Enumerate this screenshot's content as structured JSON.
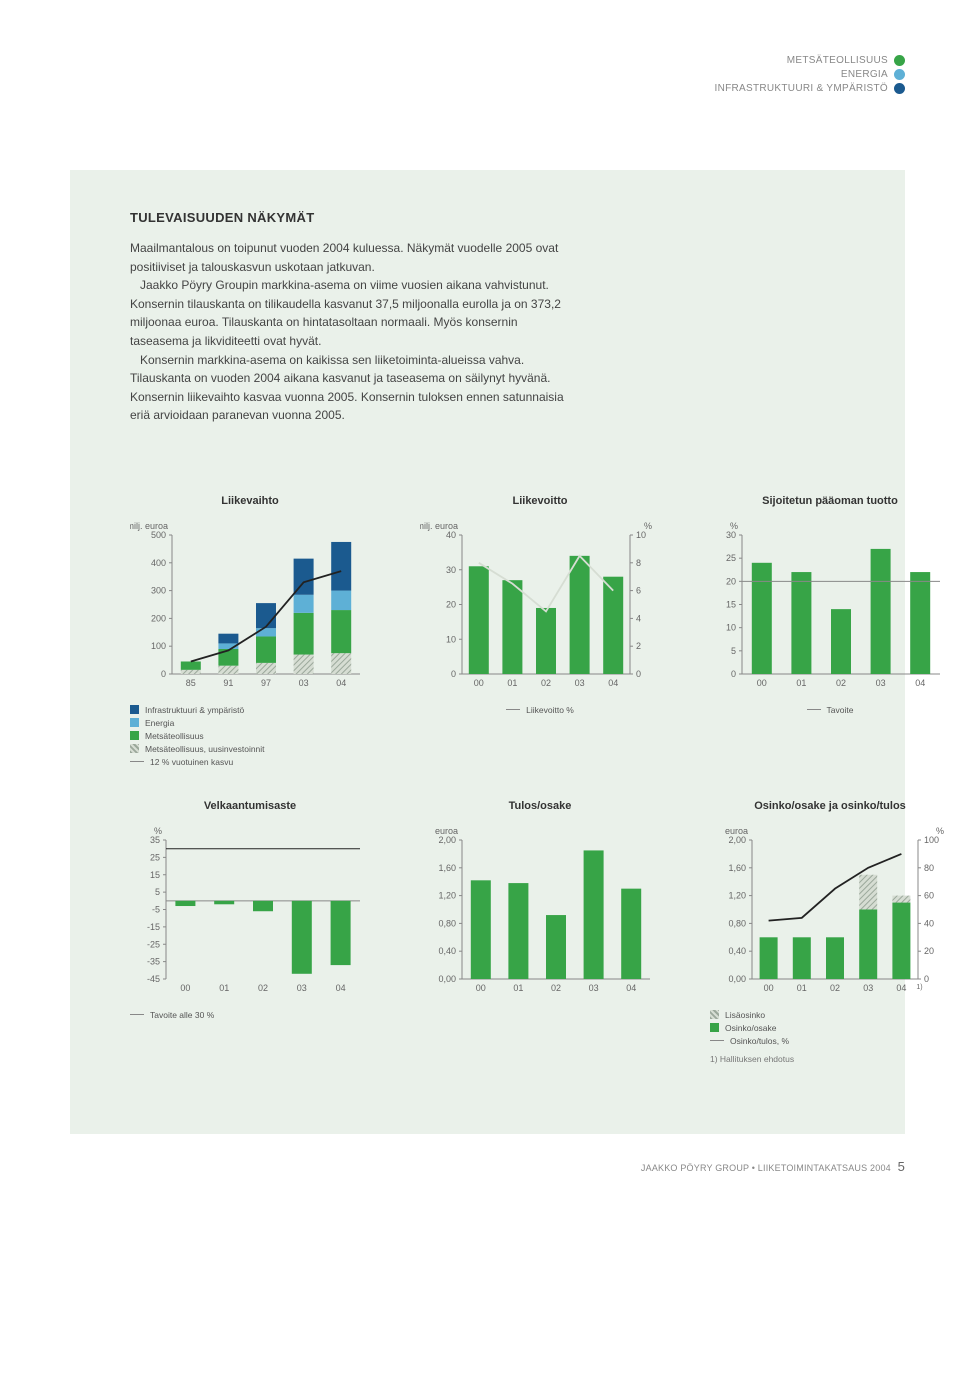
{
  "header": {
    "tags": [
      {
        "label": "METSÄTEOLLISUUS",
        "color": "#37a447"
      },
      {
        "label": "ENERGIA",
        "color": "#5eb0d6"
      },
      {
        "label": "INFRASTRUKTUURI & YMPÄRISTÖ",
        "color": "#1b5a8f"
      }
    ]
  },
  "body": {
    "title": "TULEVAISUUDEN NÄKYMÄT",
    "p1": "Maailmantalous on toipunut vuoden 2004 kuluessa. Näkymät vuodelle 2005 ovat positiiviset ja talouskasvun uskotaan jatkuvan.",
    "p2": "Jaakko Pöyry Groupin markkina-asema on viime vuosien aikana vahvistunut. Konsernin tilauskanta on tilikaudella kasvanut 37,5 miljoonalla eurolla ja on 373,2 miljoonaa euroa. Tilauskanta on hintatasoltaan normaali. Myös konsernin taseasema ja likviditeetti ovat hyvät.",
    "p3": "Konsernin markkina-asema on kaikissa sen liiketoiminta-alueissa vahva. Tilauskanta on vuoden 2004 aikana kasvanut ja taseasema on säilynyt hyvänä. Konsernin liikevaihto kasvaa vuonna 2005. Konsernin tuloksen ennen satunnaisia eriä arvioidaan paranevan vuonna 2005."
  },
  "colors": {
    "green": "#37a447",
    "dgreen": "#2e8a3c",
    "lblue": "#5eb0d6",
    "blue": "#2474b6",
    "dblue": "#1b5a8f",
    "grey": "#b9c4b9",
    "stripe": "#c9d3c9",
    "axis": "#888",
    "tick": "#666",
    "bg": "#eaf1ea",
    "black": "#222"
  },
  "chart1": {
    "title": "Liikevaihto",
    "ylab": "milj. euroa",
    "ymax": 500,
    "yticks": [
      0,
      100,
      200,
      300,
      400,
      500
    ],
    "cats": [
      "85",
      "91",
      "97",
      "03",
      "04"
    ],
    "series": {
      "stripe": [
        15,
        30,
        40,
        70,
        75
      ],
      "green": [
        30,
        60,
        95,
        150,
        155
      ],
      "lblue": [
        0,
        20,
        30,
        65,
        70
      ],
      "dblue": [
        0,
        35,
        90,
        130,
        175
      ]
    },
    "line": [
      45,
      85,
      170,
      330,
      370
    ],
    "legend": [
      {
        "sq": "#1b5a8f",
        "label": "Infrastruktuuri & ympäristö"
      },
      {
        "sq": "#5eb0d6",
        "label": "Energia"
      },
      {
        "sq": "#37a447",
        "label": "Metsäteollisuus"
      },
      {
        "sq": "stripe",
        "label": "Metsäteollisuus, uusinvestoinnit"
      },
      {
        "line": true,
        "label": "12 % vuotuinen kasvu"
      }
    ]
  },
  "chart2": {
    "title": "Liikevoitto",
    "ylab": "milj. euroa",
    "ylab2": "%",
    "ymax": 40,
    "yticks": [
      0,
      10,
      20,
      30,
      40
    ],
    "y2max": 10,
    "y2ticks": [
      0,
      2,
      4,
      6,
      8,
      10
    ],
    "cats": [
      "00",
      "01",
      "02",
      "03",
      "04"
    ],
    "bars": [
      31,
      27,
      19,
      34,
      28
    ],
    "line": [
      8.0,
      6.5,
      4.5,
      8.5,
      6.0
    ],
    "legend": [
      {
        "line": true,
        "label": "Liikevoitto %"
      }
    ]
  },
  "chart3": {
    "title": "Sijoitetun pääoman tuotto",
    "ylab": "%",
    "ymax": 30,
    "yticks": [
      0,
      5,
      10,
      15,
      20,
      25,
      30
    ],
    "cats": [
      "00",
      "01",
      "02",
      "03",
      "04"
    ],
    "bars": [
      24,
      22,
      14,
      27,
      22
    ],
    "legend": [
      {
        "line": true,
        "label": "Tavoite"
      }
    ],
    "target": 20
  },
  "chart4": {
    "title": "Velkaantumisaste",
    "ylab": "%",
    "ymin": -45,
    "ymax": 35,
    "yticks": [
      -45,
      -35,
      -25,
      -15,
      -5,
      5,
      15,
      25,
      35
    ],
    "cats": [
      "00",
      "01",
      "02",
      "03",
      "04"
    ],
    "bars": [
      -3,
      -2,
      -6,
      -42,
      -37
    ],
    "target": 30,
    "legend": [
      {
        "line": true,
        "label": "Tavoite alle 30 %"
      }
    ]
  },
  "chart5": {
    "title": "Tulos/osake",
    "ylab": "euroa",
    "ymax": 2.0,
    "yticks": [
      "0,00",
      "0,40",
      "0,80",
      "1,20",
      "1,60",
      "2,00"
    ],
    "ytvals": [
      0,
      0.4,
      0.8,
      1.2,
      1.6,
      2.0
    ],
    "cats": [
      "00",
      "01",
      "02",
      "03",
      "04"
    ],
    "bars": [
      1.42,
      1.38,
      0.92,
      1.85,
      1.3
    ]
  },
  "chart6": {
    "title": "Osinko/osake ja osinko/tulos",
    "ylab": "euroa",
    "ylab2": "%",
    "ymax": 2.0,
    "yticks": [
      "0,00",
      "0,40",
      "0,80",
      "1,20",
      "1,60",
      "2,00"
    ],
    "ytvals": [
      0,
      0.4,
      0.8,
      1.2,
      1.6,
      2.0
    ],
    "y2max": 100,
    "y2ticks": [
      0,
      20,
      40,
      60,
      80,
      100
    ],
    "cats": [
      "00",
      "01",
      "02",
      "03",
      "04"
    ],
    "bars": [
      0.6,
      0.6,
      0.6,
      1.0,
      1.1
    ],
    "extra": [
      0,
      0,
      0,
      0.5,
      0.1
    ],
    "line": [
      42,
      44,
      65,
      80,
      90
    ],
    "note04": "1)",
    "legend": [
      {
        "sq": "stripe",
        "label": "Lisäosinko"
      },
      {
        "sq": "#37a447",
        "label": "Osinko/osake"
      },
      {
        "line": true,
        "label": "Osinko/tulos, %"
      }
    ],
    "footnote": "1) Hallituksen ehdotus"
  },
  "footer": {
    "text": "JAAKKO PÖYRY GROUP  •  LIIKETOIMINTAKATSAUS 2004",
    "page": "5"
  }
}
